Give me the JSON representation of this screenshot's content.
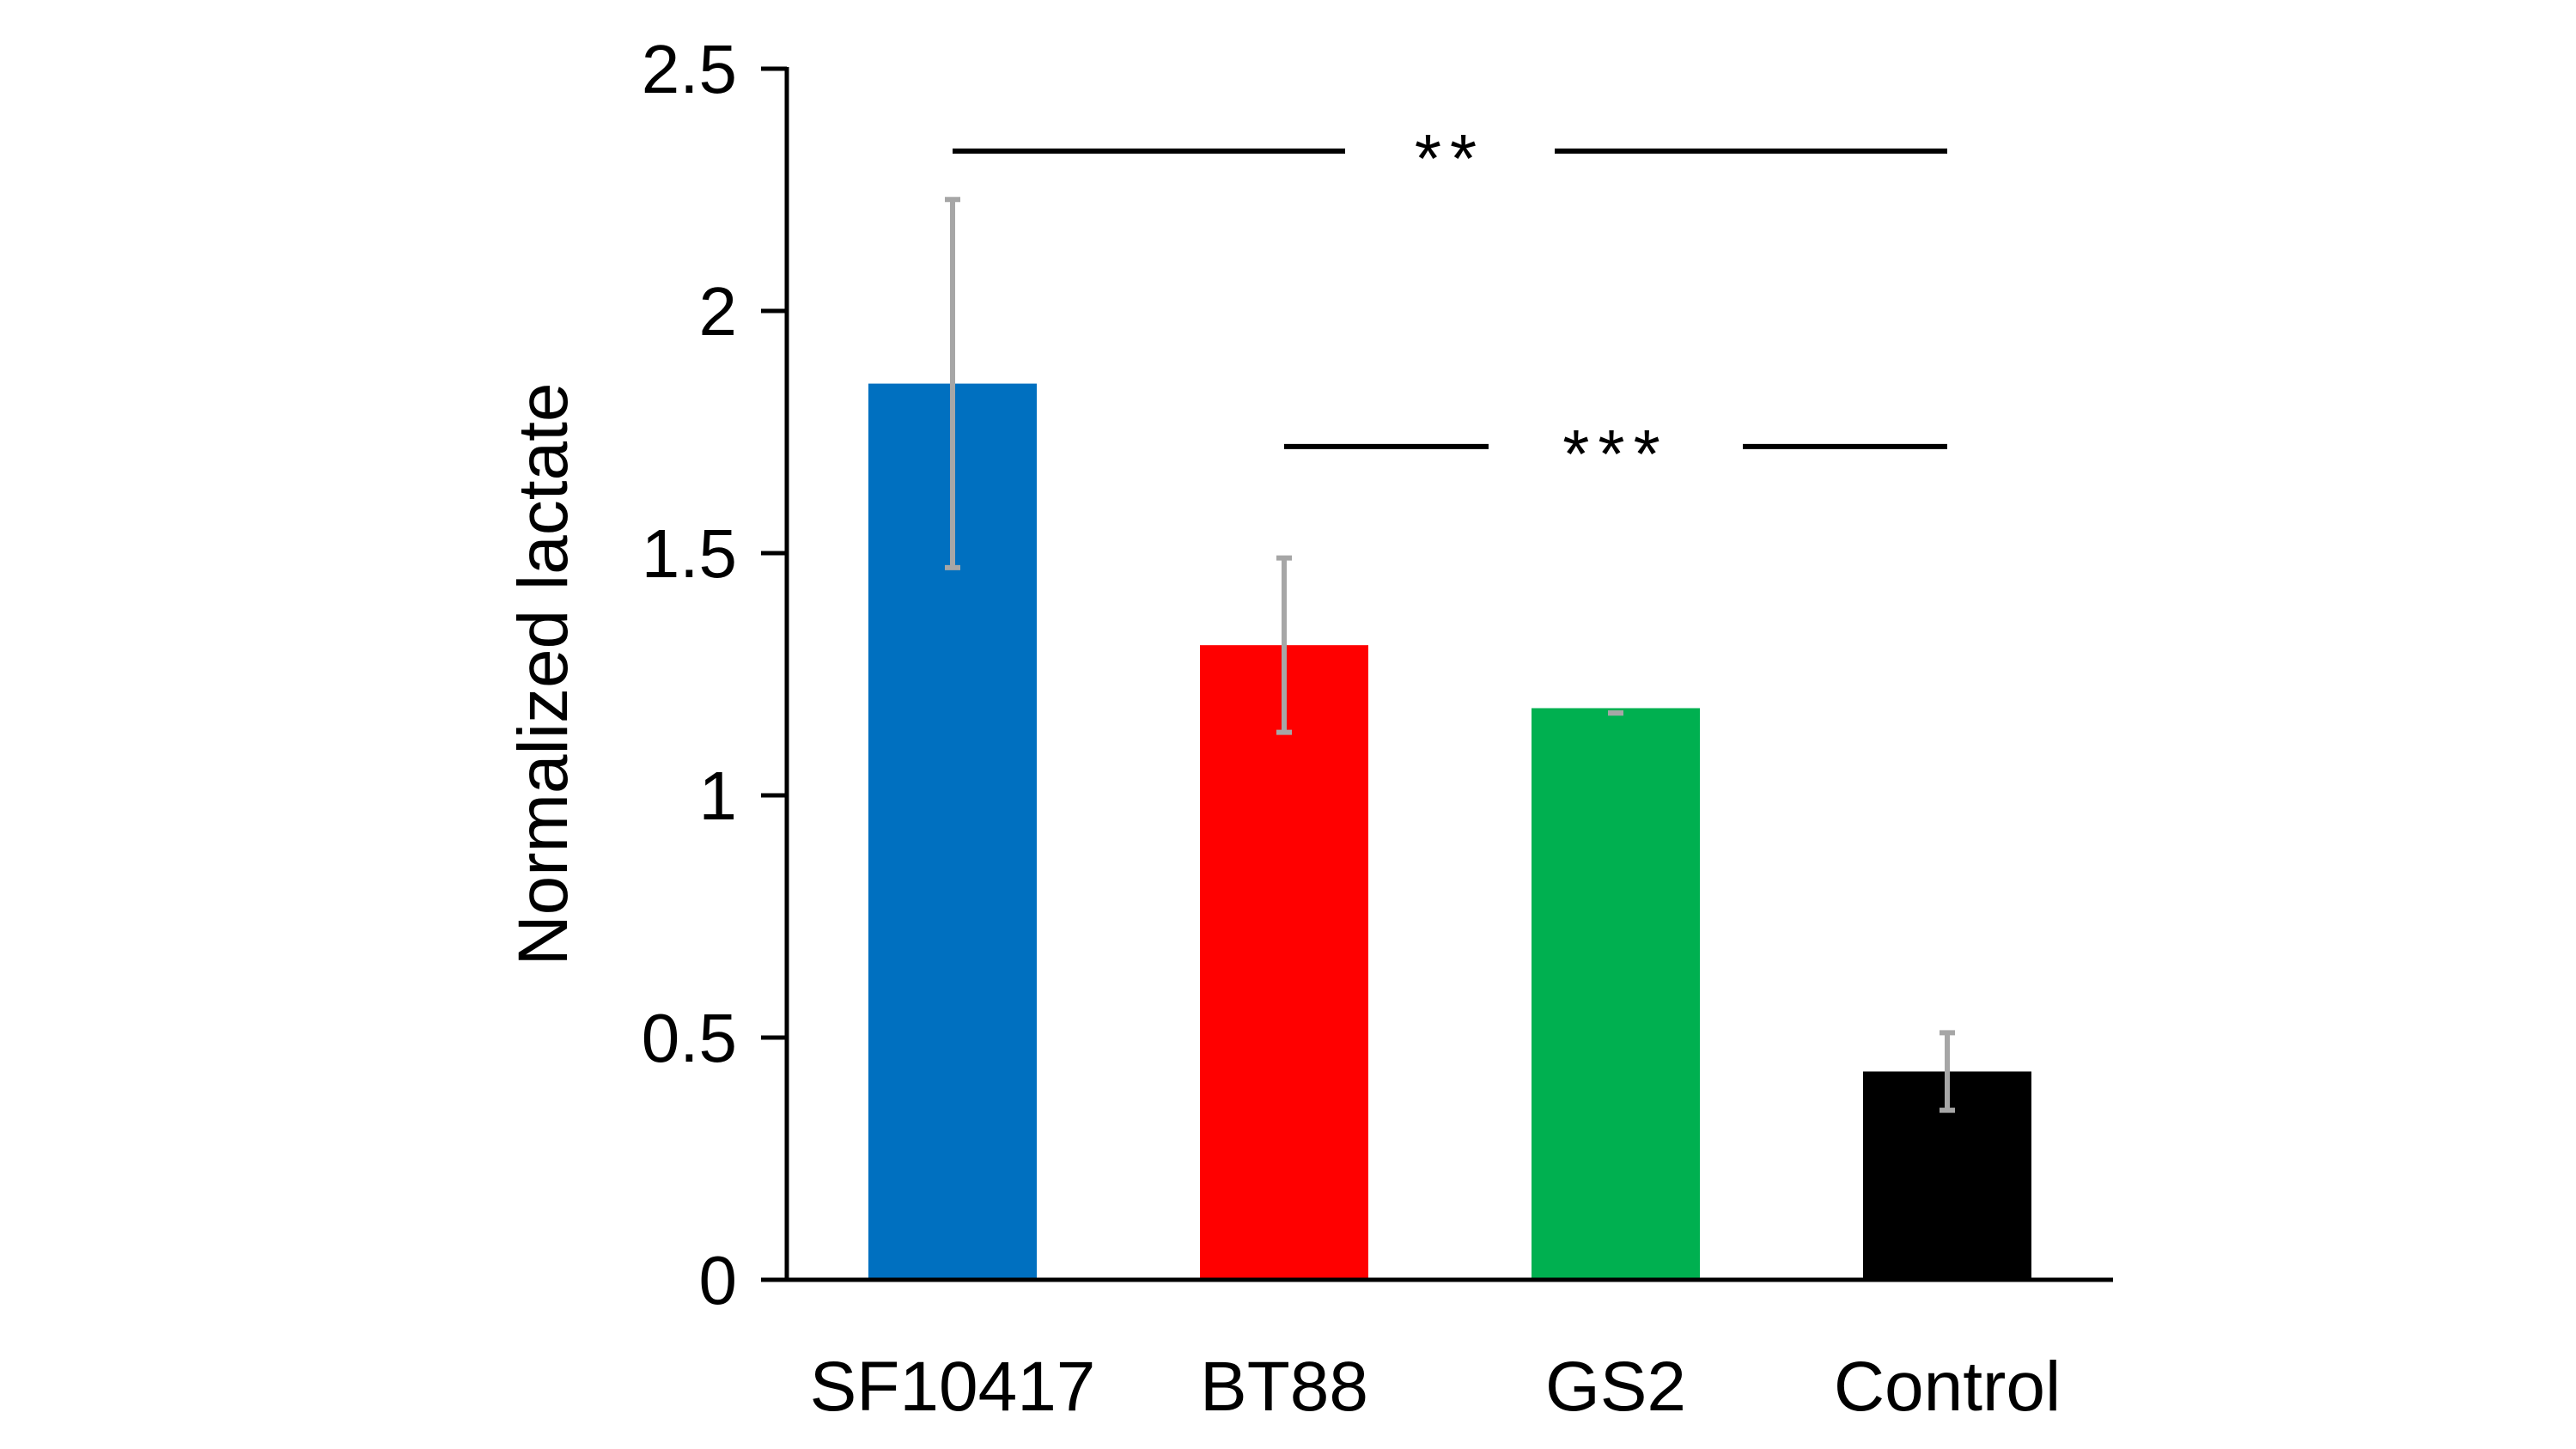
{
  "chart_data": {
    "type": "bar",
    "title": "",
    "xlabel": "",
    "ylabel": "Normalized lactate",
    "ylim": [
      0,
      2.5
    ],
    "yticks": [
      0,
      0.5,
      1,
      1.5,
      2,
      2.5
    ],
    "ytick_labels": [
      "0",
      "0.5",
      "1",
      "1.5",
      "2",
      "2.5"
    ],
    "categories": [
      "SF10417",
      "BT88",
      "GS2",
      "Control"
    ],
    "values": [
      1.85,
      1.31,
      1.18,
      0.43
    ],
    "errors": [
      {
        "low": 1.47,
        "high": 2.23
      },
      {
        "low": 1.13,
        "high": 1.49
      },
      {
        "low": 1.17,
        "high": 1.17
      },
      {
        "low": 0.35,
        "high": 0.51
      }
    ],
    "colors": [
      "#0070c0",
      "#ff0000",
      "#00b050",
      "#000000"
    ],
    "error_bar_color": "#a6a6a6",
    "grid": false,
    "significance": [
      {
        "from": "SF10417",
        "to": "Control",
        "y": 2.33,
        "label": "**"
      },
      {
        "from": "BT88",
        "to": "Control",
        "y": 1.72,
        "label": "***"
      }
    ]
  }
}
